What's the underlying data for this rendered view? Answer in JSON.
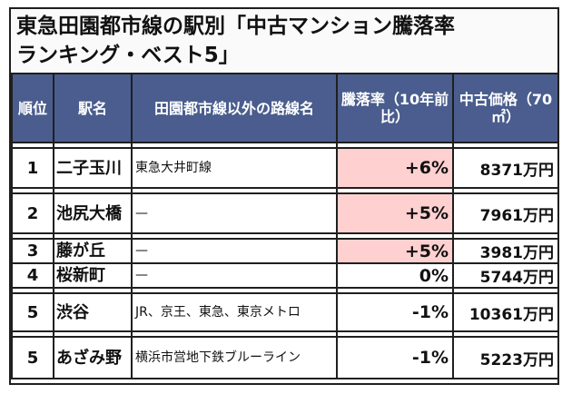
{
  "title": {
    "line1": "東急田園都市線の駅別「中古マンション騰落率",
    "line2": "ランキング・ベスト5」"
  },
  "table": {
    "headers": {
      "rank": "順位",
      "station": "駅名",
      "other_lines": "田園都市線以外の路線名",
      "change_rate": "騰落率（10年前比）",
      "price": "中古価格（70㎡）"
    },
    "rows": [
      {
        "rank": "1",
        "station": "二子玉川",
        "other_lines": "東急大井町線",
        "change_rate": "+6%",
        "price": "8371万円",
        "highlight": true
      },
      {
        "rank": "2",
        "station": "池尻大橋",
        "other_lines": "—",
        "change_rate": "+5%",
        "price": "7961万円",
        "highlight": true
      },
      {
        "rank": "3",
        "station": "藤が丘",
        "other_lines": "—",
        "change_rate": "+5%",
        "price": "3981万円",
        "highlight": true
      },
      {
        "rank": "4",
        "station": "桜新町",
        "other_lines": "—",
        "change_rate": "0%",
        "price": "5744万円",
        "highlight": false
      },
      {
        "rank": "5",
        "station": "渋谷",
        "other_lines": "JR、京王、東急、東京メトロ",
        "change_rate": "-1%",
        "price": "10361万円",
        "highlight": false
      },
      {
        "rank": "5",
        "station": "あざみ野",
        "other_lines": "横浜市営地下鉄ブルーライン",
        "change_rate": "-1%",
        "price": "5223万円",
        "highlight": false
      }
    ]
  },
  "colors": {
    "header_bg": "#4a5d8e",
    "positive_cell_bg": "#ffd0d0",
    "border": "#1f1f1f"
  }
}
